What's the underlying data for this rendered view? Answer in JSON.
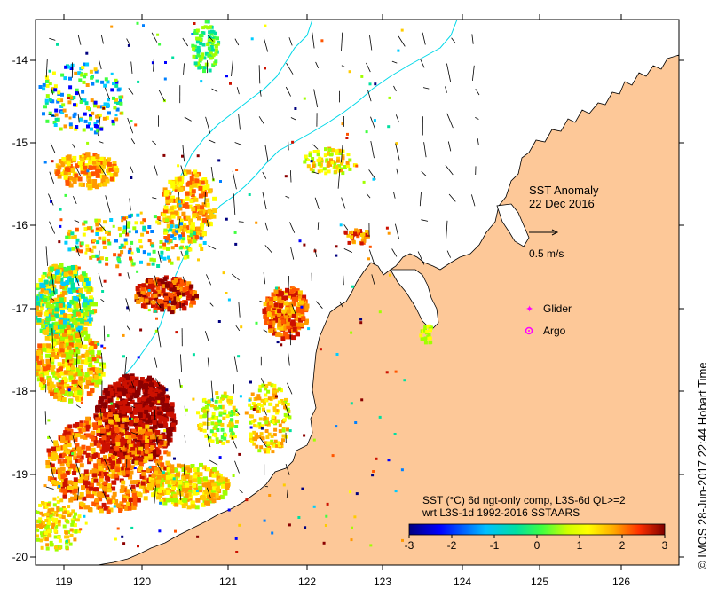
{
  "map": {
    "title": "SST Anomaly",
    "date": "22 Dec 2016",
    "x_ticks": [
      "119",
      "120",
      "121",
      "122",
      "123",
      "124",
      "125",
      "126"
    ],
    "y_ticks": [
      "-14",
      "-15",
      "-16",
      "-17",
      "-18",
      "-19",
      "-20"
    ],
    "lon_range": [
      118.62,
      126.75
    ],
    "lat_range": [
      -20.1,
      -13.45
    ],
    "scale_label": "0.5 m/s",
    "legend": {
      "glider": "Glider",
      "argo": "Argo"
    },
    "colorbar": {
      "caption_line1": "SST (°C) 6d ngt-only comp, L3S-6d QL>=2",
      "caption_line2": "wrt L3S-1d 1992-2016 SSTAARS",
      "ticks": [
        "-3",
        "-2",
        "-1",
        "0",
        "1",
        "2",
        "3"
      ],
      "colors": [
        "#00007f",
        "#0000ff",
        "#007fff",
        "#00ffff",
        "#7fff7f",
        "#ffff00",
        "#ff7f00",
        "#ff0000",
        "#7f0000"
      ]
    },
    "credit": "© IMOS 28-Jun-2017 22:44 Hobart Time",
    "colors": {
      "land": "#fdc898",
      "ocean": "#ffffff",
      "isobath": "#00d8e8",
      "marker": "#ff00ff"
    }
  }
}
